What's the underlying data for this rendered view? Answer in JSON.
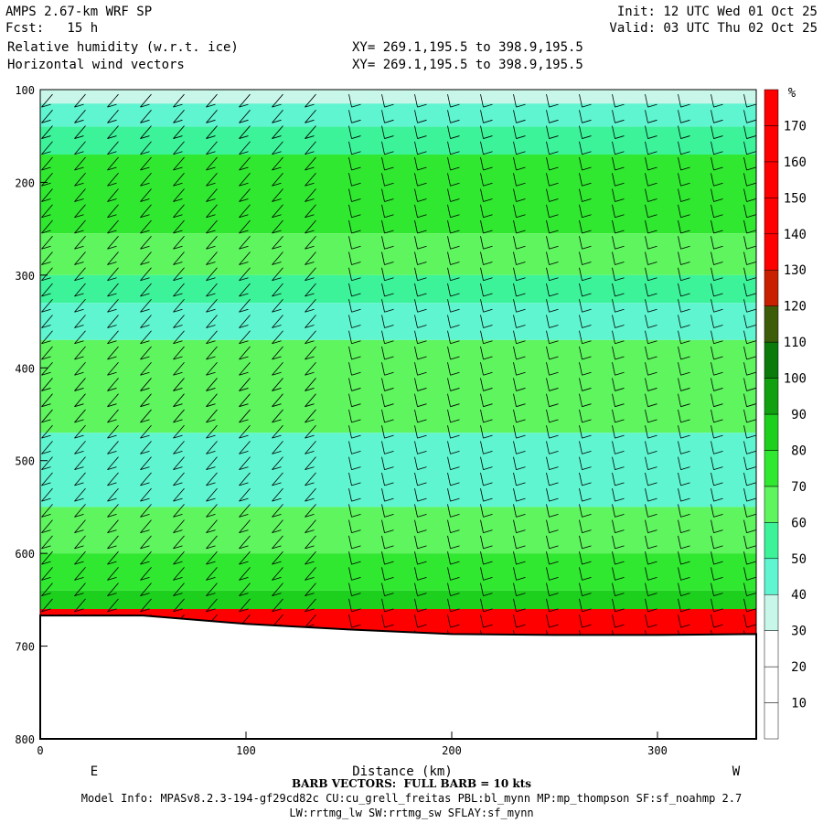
{
  "header": {
    "model": "AMPS 2.67-km WRF SP",
    "fcst": "Fcst:   15 h",
    "init": "Init: 12 UTC Wed 01 Oct 25",
    "valid": "Valid: 03 UTC Thu 02 Oct 25",
    "field1": "Relative humidity (w.r.t. ice)",
    "field2": "Horizontal wind vectors",
    "xy1": "XY= 269.1,195.5 to 398.9,195.5",
    "xy2": "XY= 269.1,195.5 to 398.9,195.5"
  },
  "footer": {
    "barb_note": "BARB VECTORS:  FULL BARB = 10 kts",
    "model_info": "Model Info: MPASv8.2.3-194-gf29cd82c CU:cu_grell_freitas PBL:bl_mynn MP:mp_thompson SF:sf_noahmp 2.7",
    "model_info2": "LW:rrtmg_lw SW:rrtmg_sw SFLAY:sf_mynn"
  },
  "chart_data": {
    "type": "heatmap",
    "title": "Relative humidity (w.r.t. ice)",
    "xlabel": "Distance (km)",
    "ylabel": "",
    "x_end_labels": [
      "E",
      "W"
    ],
    "xlim": [
      0,
      348
    ],
    "ylim": [
      800,
      100
    ],
    "x_ticks": [
      0,
      100,
      200,
      300
    ],
    "y_ticks": [
      100,
      200,
      300,
      400,
      500,
      600,
      700,
      800
    ],
    "colorbar": {
      "unit": "%",
      "levels": [
        10,
        20,
        30,
        40,
        50,
        60,
        70,
        80,
        90,
        100,
        110,
        120,
        130,
        140,
        150,
        160,
        170
      ],
      "colors": [
        "#ffffff",
        "#ffffff",
        "#ffffff",
        "#c8f7ea",
        "#5ff5d0",
        "#3cf39a",
        "#5ef55e",
        "#30e830",
        "#1ed01e",
        "#10a010",
        "#0a7a0a",
        "#3c5c0a",
        "#c82000",
        "#ff0000",
        "#ff0000",
        "#ff0000",
        "#ff0000",
        "#ff0000"
      ]
    },
    "rh_layers": [
      {
        "p_top": 100,
        "p_bot": 115,
        "rh": 35
      },
      {
        "p_top": 115,
        "p_bot": 140,
        "rh": 45
      },
      {
        "p_top": 140,
        "p_bot": 170,
        "rh": 55
      },
      {
        "p_top": 170,
        "p_bot": 255,
        "rh": 70
      },
      {
        "p_top": 255,
        "p_bot": 300,
        "rh": 60
      },
      {
        "p_top": 300,
        "p_bot": 330,
        "rh": 55
      },
      {
        "p_top": 330,
        "p_bot": 370,
        "rh": 45
      },
      {
        "p_top": 370,
        "p_bot": 470,
        "rh": 60
      },
      {
        "p_top": 470,
        "p_bot": 550,
        "rh": 45
      },
      {
        "p_top": 550,
        "p_bot": 600,
        "rh": 60
      },
      {
        "p_top": 600,
        "p_bot": 640,
        "rh": 70
      },
      {
        "p_top": 640,
        "p_bot": 660,
        "rh": 85
      },
      {
        "p_top": 660,
        "p_bot": 690,
        "rh": 150
      }
    ],
    "terrain": [
      {
        "x": 0,
        "p": 667
      },
      {
        "x": 50,
        "p": 667
      },
      {
        "x": 100,
        "p": 676
      },
      {
        "x": 150,
        "p": 682
      },
      {
        "x": 200,
        "p": 687
      },
      {
        "x": 250,
        "p": 688
      },
      {
        "x": 300,
        "p": 688
      },
      {
        "x": 348,
        "p": 687
      }
    ]
  }
}
